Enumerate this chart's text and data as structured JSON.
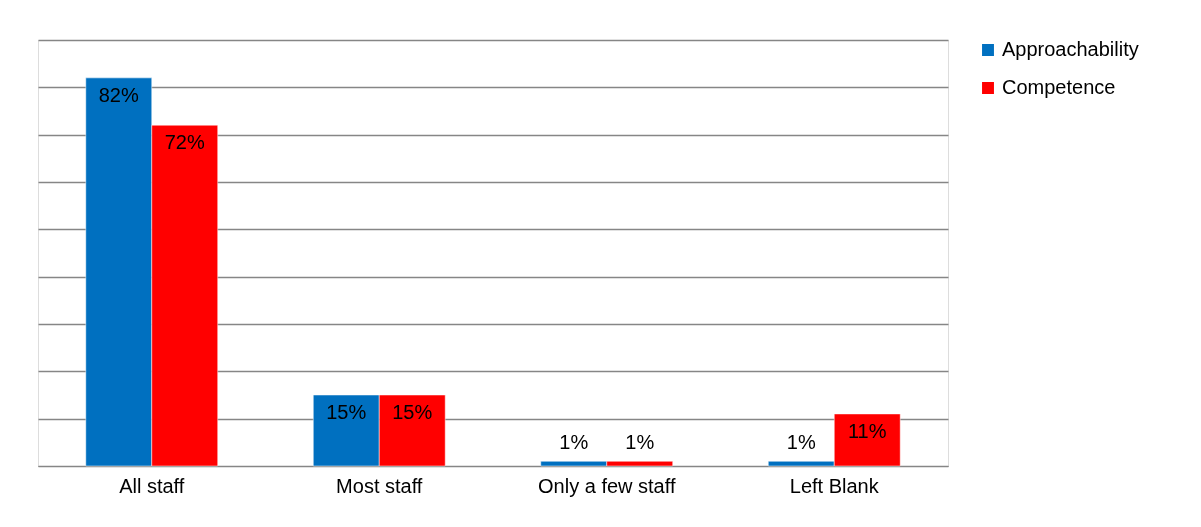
{
  "chart_data": {
    "type": "bar",
    "categories": [
      "All staff",
      "Most staff",
      "Only a few staff",
      "Left Blank"
    ],
    "series": [
      {
        "name": "Approachability",
        "color": "#0070c0",
        "values": [
          82,
          15,
          1,
          1
        ],
        "value_labels": [
          "82%",
          "15%",
          "1%",
          "1%"
        ]
      },
      {
        "name": "Competence",
        "color": "#ff0000",
        "values": [
          72,
          15,
          1,
          11
        ],
        "value_labels": [
          "72%",
          "15%",
          "1%",
          "11%"
        ]
      }
    ],
    "ylim": [
      0,
      90
    ],
    "yticks": [
      {
        "value": 0,
        "label": null
      },
      {
        "value": 10,
        "label": null
      },
      {
        "value": 20,
        "label": null
      },
      {
        "value": 30,
        "label": null
      },
      {
        "value": 40,
        "label": null
      },
      {
        "value": 50,
        "label": null
      },
      {
        "value": 60,
        "label": null
      },
      {
        "value": 70,
        "label": null
      },
      {
        "value": 80,
        "label": null
      },
      {
        "value": 90,
        "label": null
      }
    ],
    "tick_labels": "x",
    "grid": "y",
    "legend": "right"
  }
}
